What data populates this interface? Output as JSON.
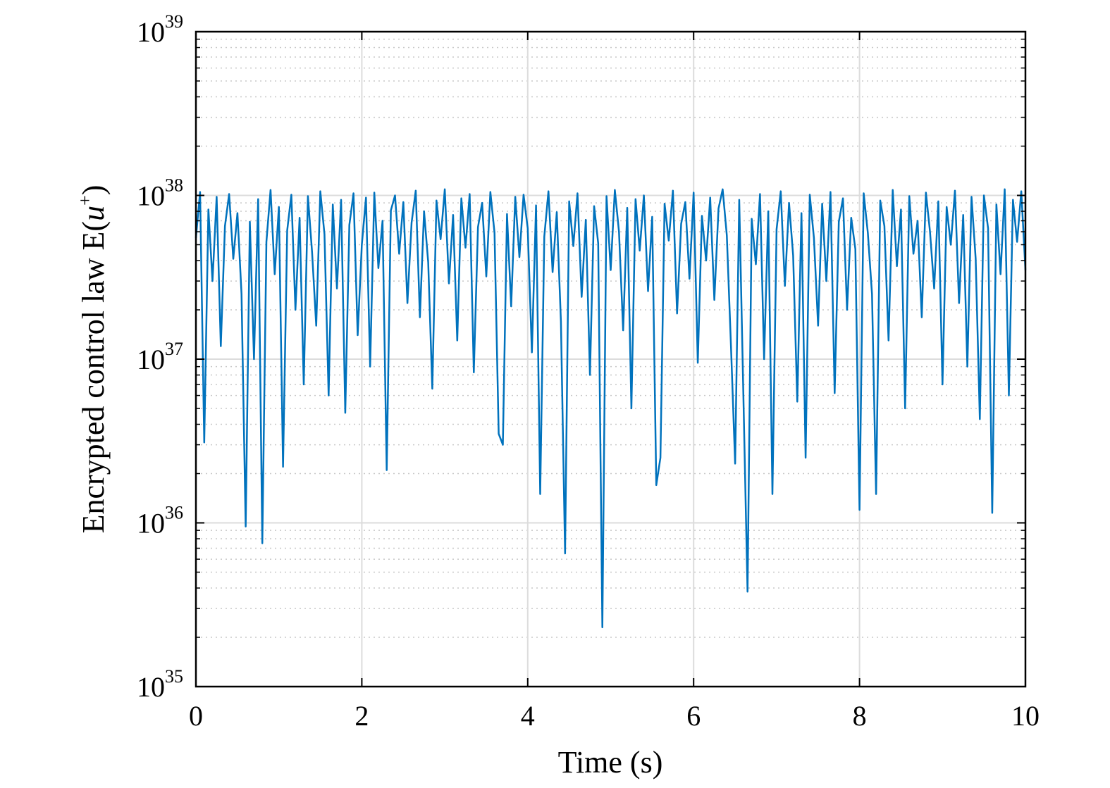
{
  "chart_data": {
    "type": "line",
    "title": "",
    "xlabel": "Time (s)",
    "ylabel": {
      "prefix": "Encrypted control law E(",
      "var": "u",
      "sup": "+",
      "suffix": ")"
    },
    "xlim": [
      0,
      10
    ],
    "ylim": [
      1e+35,
      1e+39
    ],
    "yscale": "log",
    "xticks": [
      0,
      2,
      4,
      6,
      8,
      10
    ],
    "xtick_labels": [
      "0",
      "2",
      "4",
      "6",
      "8",
      "10"
    ],
    "yticks": [
      1e+35,
      1e+36,
      1e+37,
      1e+38,
      1e+39
    ],
    "ytick_labels": [
      {
        "base": "10",
        "exp": "35"
      },
      {
        "base": "10",
        "exp": "36"
      },
      {
        "base": "10",
        "exp": "37"
      },
      {
        "base": "10",
        "exp": "38"
      },
      {
        "base": "10",
        "exp": "39"
      }
    ],
    "grid": {
      "major": true,
      "minor_y": true
    },
    "line_color": "#0072BD",
    "series": [
      {
        "x_start": 0,
        "x_step": 0.05,
        "values": [
          5.5e+37,
          1.05e+38,
          3.1e+36,
          8.2e+37,
          3e+37,
          9.8e+37,
          1.2e+37,
          6.5e+37,
          1.02e+38,
          4.1e+37,
          7.8e+37,
          2.5e+37,
          9.5e+35,
          6.9e+37,
          1e+37,
          9.5e+37,
          7.5e+35,
          5.2e+37,
          1.08e+38,
          3.3e+37,
          8.5e+37,
          2.2e+36,
          6.1e+37,
          1.01e+38,
          2e+37,
          7.3e+37,
          7e+36,
          9.9e+37,
          4.5e+37,
          1.6e+37,
          1.06e+38,
          5.8e+37,
          6e+36,
          8.8e+37,
          2.7e+37,
          9.4e+37,
          4.7e+36,
          6.6e+37,
          1.03e+38,
          1.4e+37,
          5e+37,
          9.7e+37,
          9e+36,
          1.04e+38,
          3.6e+37,
          7e+37,
          2.1e+36,
          8.1e+37,
          1e+38,
          4.4e+37,
          9.1e+37,
          2.2e+37,
          6.8e+37,
          1.07e+38,
          1.8e+37,
          8e+37,
          3.9e+37,
          6.6e+36,
          9.3e+37,
          5.4e+37,
          1.09e+38,
          2.9e+37,
          7.6e+37,
          1.3e+37,
          9.6e+37,
          4.8e+37,
          1.02e+38,
          8.3e+36,
          6.4e+37,
          9e+37,
          3.2e+37,
          1.05e+38,
          5.9e+37,
          3.5e+36,
          3e+36,
          7.7e+37,
          2.1e+37,
          9.8e+37,
          4.2e+37,
          1.01e+38,
          6.3e+37,
          1.1e+37,
          8.7e+37,
          1.5e+36,
          5.6e+37,
          1.06e+38,
          3.4e+37,
          7.9e+37,
          1.7e+37,
          6.5e+35,
          9.2e+37,
          4.9e+37,
          1.03e+38,
          2.4e+37,
          7.1e+37,
          8e+36,
          8.6e+37,
          5.1e+37,
          2.3e+35,
          9.9e+37,
          3.5e+37,
          1.08e+38,
          6e+37,
          1.5e+37,
          8.4e+37,
          5e+36,
          9.5e+37,
          4.6e+37,
          1e+38,
          2.6e+37,
          7.4e+37,
          1.7e+36,
          2.5e+36,
          8.9e+37,
          5.3e+37,
          1.07e+38,
          1.9e+37,
          6.7e+37,
          9.1e+37,
          3.1e+37,
          1.04e+38,
          9.5e+36,
          7.5e+37,
          4e+37,
          9.7e+37,
          2.3e+37,
          8.3e+37,
          1.09e+38,
          5.7e+37,
          1.2e+37,
          2.3e+36,
          9.4e+37,
          6e+36,
          3.8e+35,
          7.2e+37,
          3.8e+37,
          1.02e+38,
          1e+37,
          8e+37,
          1.5e+36,
          6.2e+37,
          1.06e+38,
          2.8e+37,
          9e+37,
          4.3e+37,
          5.5e+36,
          7.8e+37,
          2.5e+36,
          1.01e+38,
          5.5e+37,
          1.6e+37,
          8.9e+37,
          3e+37,
          1.05e+38,
          6.2e+36,
          6.9e+37,
          9.6e+37,
          2e+37,
          7.3e+37,
          4.7e+37,
          1.2e+36,
          1.03e+38,
          5.9e+37,
          2.5e+37,
          1.5e+36,
          9.3e+37,
          6.5e+37,
          1.3e+37,
          1.08e+38,
          3.7e+37,
          8.2e+37,
          5e+36,
          9.9e+37,
          4.4e+37,
          7e+37,
          1.8e+37,
          1.04e+38,
          6e+37,
          2.7e+37,
          9.2e+37,
          7e+36,
          8.5e+37,
          5e+37,
          1.07e+38,
          2.2e+37,
          7.6e+37,
          9e+36,
          9.8e+37,
          4.1e+37,
          4.3e+36,
          1e+38,
          6.3e+37,
          1.15e+36,
          8.8e+37,
          3.3e+37,
          1.09e+38,
          6e+36,
          9.4e+37,
          5.2e+37,
          1.06e+38,
          3.5e+37
        ]
      }
    ]
  }
}
